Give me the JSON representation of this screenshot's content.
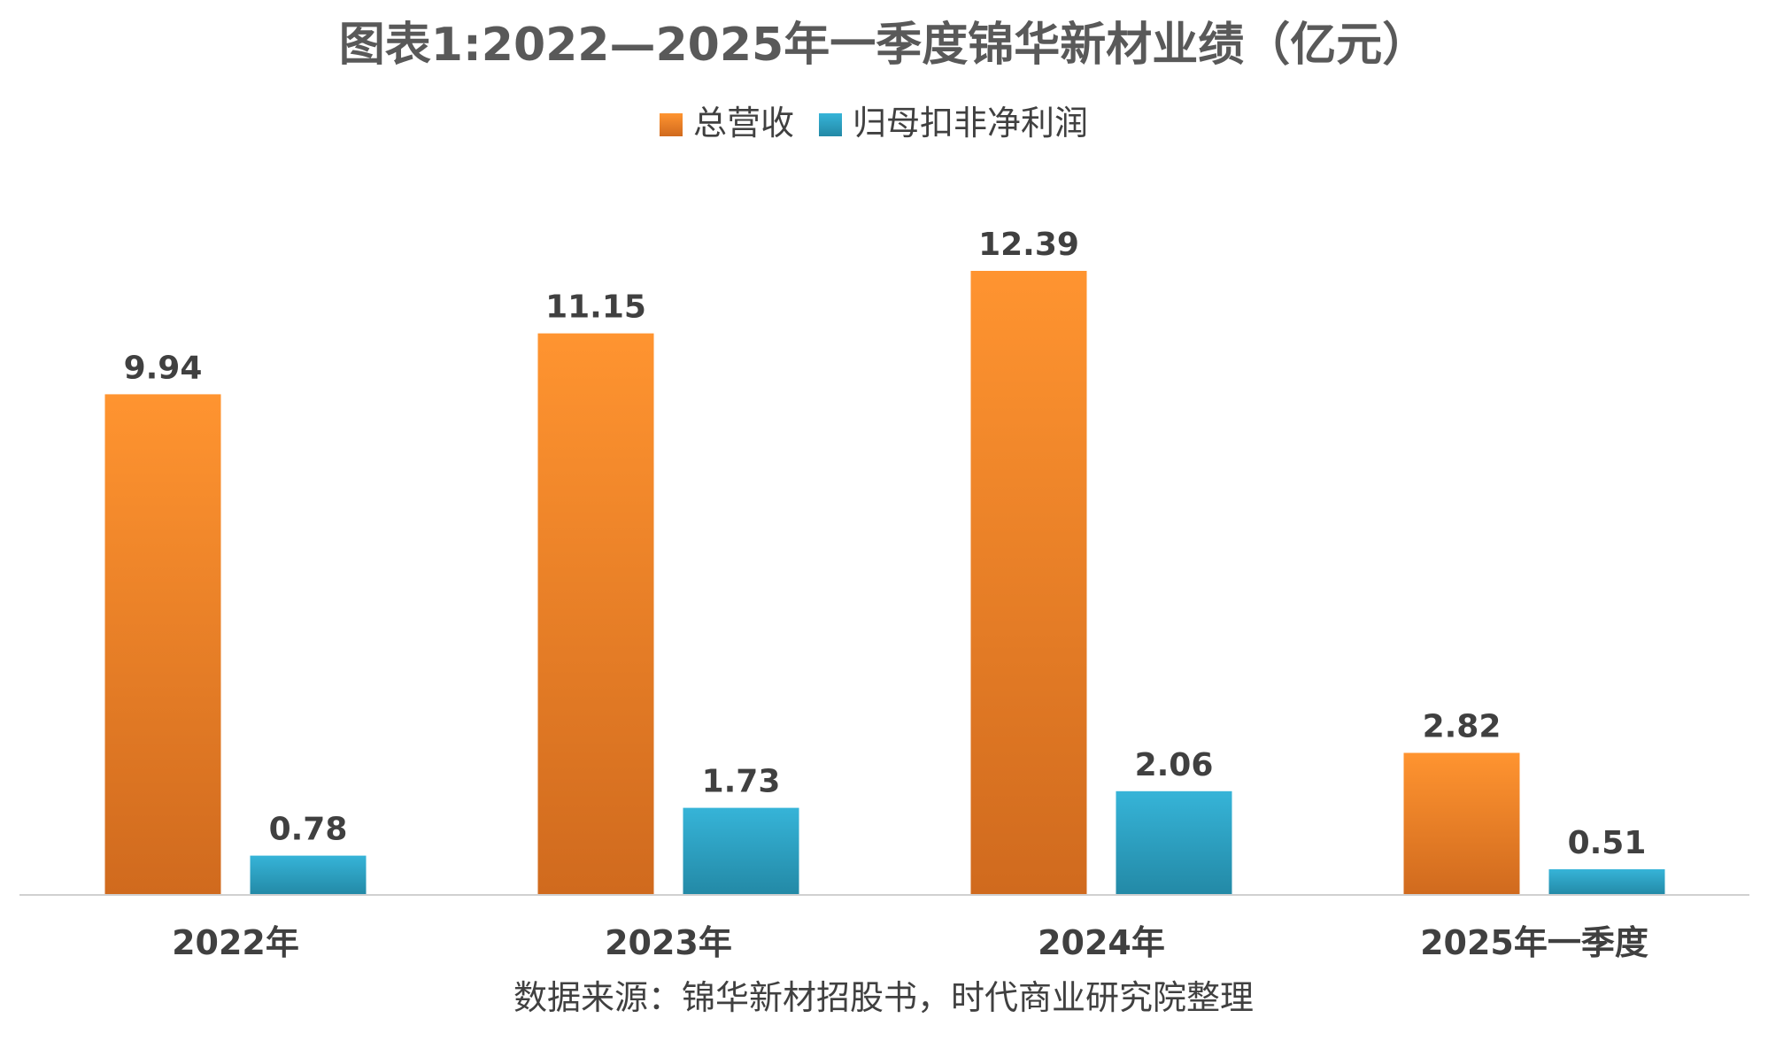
{
  "chart_data": {
    "type": "bar",
    "title": "图表1:2022—2025年一季度锦华新材业绩（亿元）",
    "categories": [
      "2022年",
      "2023年",
      "2024年",
      "2025年一季度"
    ],
    "series": [
      {
        "name": "总营收",
        "values": [
          9.94,
          11.15,
          12.39,
          2.82
        ],
        "labels": [
          "9.94",
          "11.15",
          "12.39",
          "2.82"
        ],
        "color": "#F28E2B"
      },
      {
        "name": "归母扣非净利润",
        "values": [
          0.78,
          1.73,
          2.06,
          0.51
        ],
        "labels": [
          "0.78",
          "1.73",
          "2.06",
          "0.51"
        ],
        "color": "#2FAACB"
      }
    ],
    "ylim": [
      0,
      13
    ],
    "grid": false,
    "legend": "top-center",
    "source": "数据来源：锦华新材招股书，时代商业研究院整理"
  }
}
